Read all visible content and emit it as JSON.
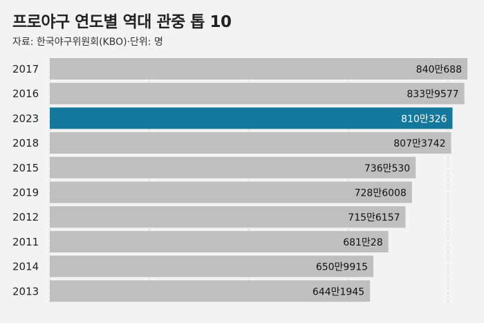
{
  "title": "프로야구 연도별 역대 관중 톱 10",
  "subtitle": "자료: 한국야구위원회(KBO)·단위: 명",
  "colors": {
    "bar": "#bfbfbf",
    "highlight": "#13789c",
    "label": "#111111",
    "highlight_label": "#ffffff",
    "background": "#f3f3f3",
    "grid": "#c8c8c8"
  },
  "chart_data": {
    "type": "bar",
    "orientation": "horizontal",
    "categories": [
      "2017",
      "2016",
      "2023",
      "2018",
      "2015",
      "2019",
      "2012",
      "2011",
      "2014",
      "2013"
    ],
    "values": [
      8400688,
      8339577,
      8100326,
      8073742,
      7360530,
      7286008,
      7156157,
      6810028,
      6509915,
      6441945
    ],
    "value_labels": [
      "840만688",
      "833만9577",
      "810만326",
      "807만3742",
      "736만530",
      "728만6008",
      "715만6157",
      "681만28",
      "650만9915",
      "644만1945"
    ],
    "highlight_category": "2023",
    "title": "프로야구 연도별 역대 관중 톱 10",
    "subtitle": "자료: 한국야구위원회(KBO)·단위: 명",
    "xlim": [
      0,
      8400688
    ],
    "grid": true,
    "legend": "none"
  }
}
